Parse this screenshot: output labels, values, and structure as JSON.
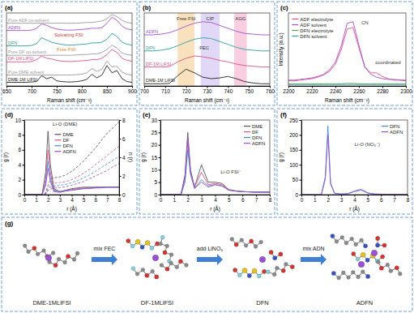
{
  "chart_data": [
    {
      "type": "line",
      "title": "(a)",
      "x_label": "Raman shift (cm⁻¹)",
      "x": [
        650,
        660,
        670,
        680,
        690,
        700,
        710,
        720,
        730,
        740,
        750,
        760,
        770,
        780,
        790,
        800,
        810,
        820,
        830,
        840,
        850,
        860,
        870,
        880,
        890,
        900
      ],
      "xlim": [
        650,
        900
      ],
      "xticks": [
        650,
        700,
        750,
        800,
        850,
        900
      ],
      "ylim": [
        0,
        10
      ],
      "tick_labels": "x",
      "legend": "left",
      "series": [
        {
          "name": "DME-1M LiFSI",
          "color": "#222222",
          "values": [
            0.5,
            0.5,
            0.5,
            0.5,
            0.5,
            0.55,
            0.6,
            1.4,
            1.0,
            1.2,
            0.7,
            0.6,
            0.55,
            0.55,
            0.6,
            0.7,
            0.9,
            1.6,
            1.1,
            1.5,
            2.8,
            1.8,
            2.1,
            1.0,
            0.6,
            0.5
          ]
        },
        {
          "name": "Pure DME solvent",
          "color": "#9a9a9a",
          "values": [
            1.5,
            1.5,
            1.5,
            1.5,
            1.5,
            1.5,
            1.5,
            1.5,
            1.5,
            1.5,
            1.5,
            1.5,
            1.5,
            1.5,
            1.55,
            1.6,
            1.8,
            2.4,
            2.0,
            2.3,
            3.4,
            2.6,
            2.7,
            1.9,
            1.6,
            1.5
          ]
        },
        {
          "name": "DF-1M LiFSI",
          "color": "#e0508a",
          "values": [
            3.3,
            3.3,
            3.3,
            3.3,
            3.3,
            3.35,
            3.6,
            4.1,
            3.8,
            3.7,
            3.5,
            3.4,
            3.35,
            3.35,
            3.4,
            3.45,
            3.5,
            3.6,
            3.6,
            3.8,
            4.3,
            5.0,
            4.6,
            3.8,
            3.5,
            3.4
          ]
        },
        {
          "name": "Pure DF co-solvent",
          "color": "#9a9a9a",
          "values": [
            4.2,
            4.2,
            4.2,
            4.2,
            4.2,
            4.2,
            4.2,
            4.2,
            4.2,
            4.2,
            4.2,
            4.2,
            4.2,
            4.2,
            4.25,
            4.3,
            4.3,
            4.4,
            4.4,
            4.6,
            5.0,
            5.6,
            5.2,
            4.5,
            4.3,
            4.2
          ]
        },
        {
          "name": "DFN",
          "color": "#2f9e9a",
          "values": [
            5.5,
            5.5,
            5.5,
            5.5,
            5.5,
            5.55,
            5.8,
            6.6,
            6.3,
            6.0,
            5.8,
            5.7,
            5.6,
            5.6,
            5.65,
            5.7,
            5.75,
            5.9,
            5.9,
            6.0,
            6.4,
            7.2,
            6.8,
            6.0,
            5.7,
            5.6
          ]
        },
        {
          "name": "ADFN",
          "color": "#a04fd0",
          "values": [
            7.6,
            7.6,
            7.6,
            7.6,
            7.6,
            7.65,
            7.9,
            8.5,
            8.3,
            8.0,
            7.8,
            7.7,
            7.65,
            7.65,
            7.7,
            7.75,
            7.8,
            7.9,
            7.9,
            8.0,
            8.6,
            9.4,
            9.0,
            8.2,
            7.8,
            7.7
          ]
        },
        {
          "name": "Pure ADF co-solvent",
          "color": "#9a9a9a",
          "values": [
            8.6,
            8.6,
            8.6,
            8.6,
            8.6,
            8.6,
            8.6,
            8.6,
            8.6,
            8.6,
            8.6,
            8.6,
            8.6,
            8.6,
            8.6,
            8.65,
            8.7,
            8.7,
            8.8,
            8.9,
            9.2,
            9.8,
            9.5,
            9.0,
            8.7,
            8.6
          ]
        }
      ],
      "annotations": [
        "Solvating FSI",
        "Free FSI"
      ]
    },
    {
      "type": "line",
      "title": "(b)",
      "x_label": "Raman shift (cm⁻¹)",
      "x": [
        700,
        704,
        708,
        712,
        716,
        720,
        724,
        728,
        732,
        736,
        740,
        744,
        748,
        752,
        756,
        760
      ],
      "xlim": [
        700,
        760
      ],
      "xticks": [
        700,
        710,
        720,
        730,
        740,
        750,
        760
      ],
      "ylim": [
        0,
        10
      ],
      "tick_labels": "x",
      "legend": "left",
      "bands": [
        {
          "label": "Free FSI",
          "range": [
            716,
            724
          ],
          "color": "#f6c888"
        },
        {
          "label": "CIP",
          "range": [
            727,
            736
          ],
          "color": "#c7b8ee"
        },
        {
          "label": "AGG",
          "range": [
            743,
            749
          ],
          "color": "#f4a6c8"
        }
      ],
      "series": [
        {
          "name": "DME-1M LiFSI",
          "color": "#222222",
          "values": [
            0.3,
            0.3,
            0.3,
            0.35,
            1.4,
            2.3,
            1.8,
            1.2,
            1.0,
            1.1,
            1.3,
            1.0,
            0.6,
            0.4,
            0.3,
            0.3
          ]
        },
        {
          "name": "DF-1M LiFSI",
          "color": "#e0508a",
          "values": [
            2.6,
            2.6,
            2.6,
            2.65,
            3.3,
            3.8,
            4.1,
            4.0,
            3.8,
            3.5,
            3.3,
            3.0,
            2.8,
            2.7,
            2.6,
            2.6
          ]
        },
        {
          "name": "DFN",
          "color": "#2f9e9a",
          "values": [
            4.8,
            4.8,
            4.9,
            5.1,
            5.5,
            6.0,
            6.4,
            6.6,
            6.5,
            6.1,
            5.7,
            5.3,
            5.0,
            4.9,
            4.8,
            4.8
          ]
        },
        {
          "name": "ADFN",
          "color": "#a04fd0",
          "values": [
            7.0,
            7.0,
            7.1,
            7.3,
            7.7,
            8.2,
            8.6,
            8.8,
            8.7,
            8.3,
            7.9,
            7.5,
            7.2,
            7.1,
            7.0,
            7.0
          ]
        }
      ],
      "annotations": [
        "FEC"
      ]
    },
    {
      "type": "line",
      "title": "(c)",
      "x_label": "Raman shift (cm⁻¹)",
      "y_label": "Intensity (a.u.)",
      "x": [
        2200,
        2205,
        2210,
        2215,
        2220,
        2225,
        2230,
        2235,
        2240,
        2245,
        2250,
        2255,
        2260,
        2265,
        2270,
        2275,
        2280,
        2285,
        2290,
        2295,
        2300
      ],
      "xlim": [
        2200,
        2300
      ],
      "xticks": [
        2200,
        2220,
        2240,
        2260,
        2280,
        2300
      ],
      "ylim": [
        0,
        10
      ],
      "tick_labels": "x",
      "legend": "upper left",
      "series": [
        {
          "name": "ADF electrolyte",
          "color": "#e0508a",
          "values": [
            0.7,
            0.7,
            0.8,
            0.9,
            1.0,
            1.2,
            1.5,
            2.0,
            3.0,
            5.0,
            7.8,
            8.0,
            5.2,
            2.6,
            1.8,
            1.8,
            1.3,
            1.0,
            0.8,
            0.8,
            0.7
          ]
        },
        {
          "name": "ADF solvent",
          "color": "#a04fd0",
          "values": [
            0.8,
            0.8,
            0.9,
            1.0,
            1.1,
            1.3,
            1.6,
            2.2,
            3.3,
            5.5,
            8.6,
            8.8,
            5.6,
            2.6,
            1.6,
            1.2,
            1.0,
            0.9,
            0.9,
            0.8,
            0.8
          ]
        },
        {
          "name": "DFN electrolyte",
          "color": "#5aa05a",
          "values": [
            0.3,
            0.3,
            0.3,
            0.3,
            0.3,
            0.3,
            0.3,
            0.3,
            0.3,
            0.3,
            0.35,
            0.35,
            0.3,
            0.3,
            0.3,
            0.3,
            0.3,
            0.3,
            0.3,
            0.3,
            0.3
          ]
        },
        {
          "name": "DFN solvent",
          "color": "#2f9e9a",
          "values": [
            0.2,
            0.2,
            0.2,
            0.2,
            0.2,
            0.2,
            0.2,
            0.2,
            0.2,
            0.2,
            0.2,
            0.2,
            0.2,
            0.2,
            0.2,
            0.2,
            0.2,
            0.2,
            0.2,
            0.2,
            0.2
          ]
        }
      ],
      "annotations": [
        "CN",
        "coordinated"
      ]
    },
    {
      "type": "line",
      "title": "(d)",
      "x_label": "r (Å)",
      "y_label": "g (r)",
      "y2_label": "n (r)",
      "x": [
        0,
        1,
        1.5,
        1.8,
        2,
        2.2,
        2.5,
        3,
        3.5,
        4,
        4.5,
        5,
        5.5,
        6,
        6.5,
        7,
        7.5,
        8
      ],
      "xlim": [
        0,
        8
      ],
      "xticks": [
        0,
        1,
        2,
        3,
        4,
        5,
        6,
        7,
        8
      ],
      "ylim": [
        0,
        10
      ],
      "yticks": [
        0,
        2,
        4,
        6,
        8,
        10
      ],
      "y2lim": [
        0,
        8
      ],
      "y2ticks": [
        0,
        2,
        4,
        6,
        8
      ],
      "legend": "upper center",
      "series": [
        {
          "name": "DME",
          "color": "#555555",
          "values": [
            0,
            0,
            0,
            3,
            8.5,
            4,
            0.8,
            0.4,
            0.6,
            0.8,
            0.9,
            1.0,
            1.0,
            1.0,
            1.0,
            1.0,
            1.0,
            1.0
          ],
          "n_values": [
            0,
            0,
            0,
            0.2,
            1.0,
            1.6,
            1.8,
            1.9,
            2.1,
            2.5,
            3.0,
            3.6,
            4.3,
            5.0,
            5.8,
            6.6,
            7.2,
            7.8
          ]
        },
        {
          "name": "DF",
          "color": "#e0508a",
          "values": [
            0,
            0,
            0,
            2,
            6,
            3,
            0.6,
            0.4,
            0.5,
            0.7,
            0.8,
            0.9,
            0.9,
            1,
            1,
            1,
            1,
            1
          ],
          "n_values": [
            0,
            0,
            0,
            0.1,
            0.7,
            1.1,
            1.2,
            1.3,
            1.4,
            1.6,
            1.9,
            2.3,
            2.7,
            3.2,
            3.7,
            4.2,
            4.7,
            5.2
          ]
        },
        {
          "name": "DFN",
          "color": "#3a8fd0",
          "values": [
            0,
            0,
            0,
            1.5,
            4.5,
            2.2,
            0.5,
            0.4,
            0.5,
            0.6,
            0.7,
            0.8,
            0.9,
            0.9,
            1,
            1,
            1,
            1
          ],
          "n_values": [
            0,
            0,
            0,
            0.1,
            0.5,
            0.8,
            0.9,
            1.0,
            1.1,
            1.3,
            1.5,
            1.8,
            2.1,
            2.5,
            2.9,
            3.3,
            3.7,
            4.1
          ]
        },
        {
          "name": "ADFN",
          "color": "#9b4fd0",
          "values": [
            0,
            0,
            0,
            1.2,
            3.5,
            1.8,
            0.4,
            0.3,
            0.5,
            0.6,
            0.7,
            0.8,
            0.8,
            0.9,
            0.9,
            1,
            1,
            1
          ],
          "n_values": [
            0,
            0,
            0,
            0.05,
            0.4,
            0.6,
            0.7,
            0.75,
            0.85,
            1.0,
            1.2,
            1.4,
            1.7,
            2.0,
            2.3,
            2.6,
            3.0,
            3.3
          ]
        }
      ],
      "annotations": [
        "Li-O (DME)"
      ]
    },
    {
      "type": "line",
      "title": "(e)",
      "x_label": "r (Å)",
      "y_label": "g (r)",
      "x": [
        0,
        1,
        1.5,
        1.8,
        2,
        2.2,
        2.5,
        3,
        3.5,
        4,
        4.5,
        5,
        5.5,
        6,
        6.5,
        7,
        7.5,
        8
      ],
      "xlim": [
        0,
        8
      ],
      "xticks": [
        0,
        1,
        2,
        3,
        4,
        5,
        6,
        7,
        8
      ],
      "ylim": [
        0,
        30
      ],
      "yticks": [
        0,
        5,
        10,
        15,
        20,
        25,
        30
      ],
      "legend": "upper right",
      "series": [
        {
          "name": "DME",
          "color": "#555555",
          "values": [
            0,
            0,
            0,
            8,
            25,
            10,
            3,
            12,
            5,
            5,
            4.5,
            2,
            1.5,
            1.2,
            1.1,
            1,
            1,
            1
          ]
        },
        {
          "name": "DF",
          "color": "#e0508a",
          "values": [
            0,
            0,
            0,
            6,
            21,
            9,
            3,
            9,
            4,
            4.5,
            4,
            2,
            1.5,
            1.2,
            1.1,
            1,
            1,
            1
          ]
        },
        {
          "name": "DFN",
          "color": "#3a8fd0",
          "values": [
            0,
            0,
            0,
            5,
            18,
            8,
            2.5,
            6,
            3.5,
            4,
            3.5,
            1.8,
            1.4,
            1.2,
            1.1,
            1,
            1,
            1
          ]
        },
        {
          "name": "ADFN",
          "color": "#9b4fd0",
          "values": [
            0,
            0,
            0,
            7,
            23,
            9,
            2.5,
            5,
            3,
            4,
            3.5,
            1.8,
            1.4,
            1.2,
            1.1,
            1,
            1,
            1
          ]
        }
      ],
      "annotations": [
        "Li-O FSI⁻"
      ]
    },
    {
      "type": "line",
      "title": "(f)",
      "x_label": "r (Å)",
      "y_label": "g (r)",
      "x": [
        0,
        1,
        1.5,
        1.8,
        2,
        2.2,
        2.5,
        3,
        3.5,
        4,
        4.5,
        5,
        5.5,
        6,
        6.5,
        7,
        7.5,
        8
      ],
      "xlim": [
        0,
        8
      ],
      "xticks": [
        0,
        1,
        2,
        3,
        4,
        5,
        6,
        7,
        8
      ],
      "ylim": [
        0,
        250
      ],
      "yticks": [
        0,
        50,
        100,
        150,
        200,
        250
      ],
      "legend": "upper right",
      "series": [
        {
          "name": "DFN",
          "color": "#3a8fd0",
          "values": [
            0,
            0,
            0,
            60,
            230,
            40,
            5,
            2,
            3,
            10,
            15,
            5,
            2,
            1.5,
            1.2,
            1,
            1,
            1
          ]
        },
        {
          "name": "ADFN",
          "color": "#9b4fd0",
          "values": [
            0,
            0,
            0,
            50,
            200,
            35,
            4,
            2,
            3,
            12,
            18,
            6,
            2,
            1.5,
            1.2,
            1,
            1,
            1
          ]
        }
      ],
      "annotations": [
        "Li-O (NO₃⁻)"
      ]
    }
  ],
  "scheme": {
    "title": "(g)",
    "stages": [
      "DME-1MLiFSI",
      "DF-1MLiFSI",
      "DFN",
      "ADFN"
    ],
    "steps": [
      "mix FEC",
      "add LiNO₃",
      "mix ADN"
    ]
  }
}
